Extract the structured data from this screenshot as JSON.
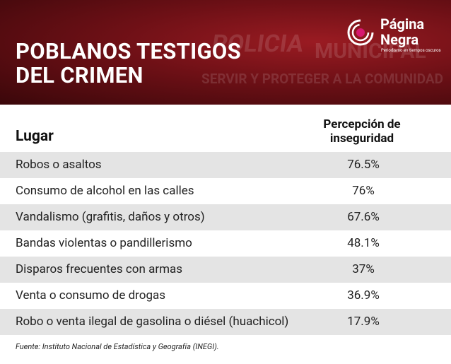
{
  "header": {
    "title_lines": [
      "POBLANOS TESTIGOS",
      "DEL CRIMEN"
    ],
    "background_text": [
      "POLICIA",
      "MUNICIPAL",
      "SERVIR Y PROTEGER A LA COMUNIDAD"
    ],
    "brand": {
      "line1": "Página",
      "line2": "Negra",
      "tagline": "Periodismo en tiempos oscuros"
    }
  },
  "table": {
    "columns": [
      "Lugar",
      "Percepción de inseguridad"
    ],
    "rows": [
      [
        "Robos o asaltos",
        "76.5%"
      ],
      [
        "Consumo de alcohol en las calles",
        "76%"
      ],
      [
        "Vandalismo (grafitis, daños y otros)",
        "67.6%"
      ],
      [
        "Bandas violentas o pandillerismo",
        "48.1%"
      ],
      [
        "Disparos frecuentes con armas",
        "37%"
      ],
      [
        "Venta o consumo de drogas",
        "36.9%"
      ],
      [
        "Robo o venta ilegal de gasolina o diésel (huachicol)",
        "17.9%"
      ]
    ]
  },
  "footer": {
    "source": "Fuente: Instituto Nacional de Estadística y Geografía (INEGI)."
  }
}
